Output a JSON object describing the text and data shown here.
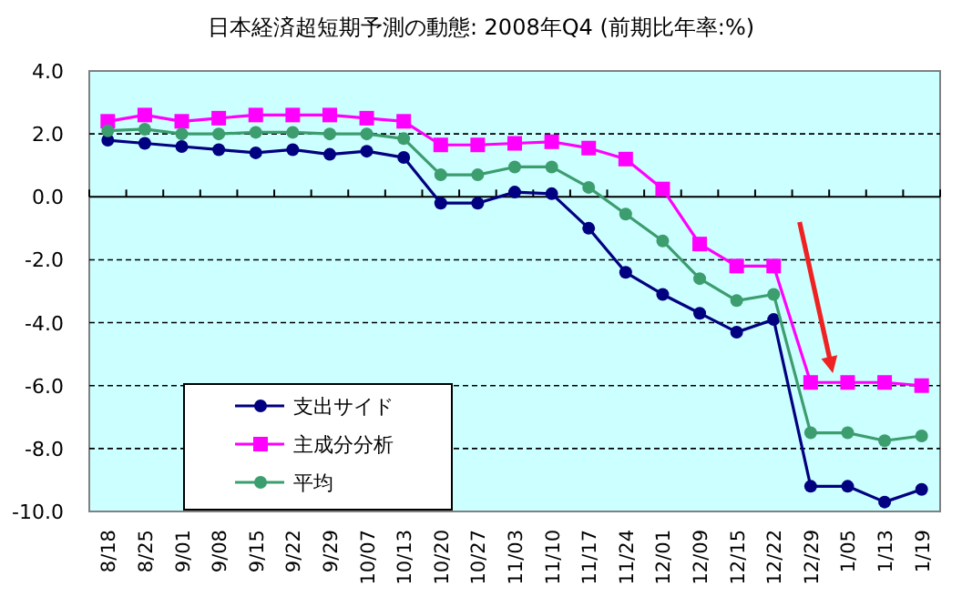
{
  "chart_data": {
    "type": "line",
    "title": "日本経済超短期予測の動態: 2008年Q4 (前期比年率:%)",
    "categories": [
      "8/18",
      "8/25",
      "9/01",
      "9/08",
      "9/15",
      "9/22",
      "9/29",
      "10/07",
      "10/13",
      "10/20",
      "10/27",
      "11/03",
      "11/10",
      "11/17",
      "11/24",
      "12/01",
      "12/09",
      "12/15",
      "12/22",
      "12/29",
      "1/05",
      "1/13",
      "1/19"
    ],
    "series": [
      {
        "name": "支出サイド",
        "color": "#000080",
        "marker": "circle",
        "values": [
          1.8,
          1.7,
          1.6,
          1.5,
          1.4,
          1.5,
          1.35,
          1.45,
          1.25,
          -0.2,
          -0.2,
          0.15,
          0.1,
          -1.0,
          -2.4,
          -3.1,
          -3.7,
          -4.3,
          -3.9,
          -9.2,
          -9.2,
          -9.7,
          -9.3
        ]
      },
      {
        "name": "主成分分析",
        "color": "#ff00ff",
        "marker": "square",
        "values": [
          2.4,
          2.6,
          2.4,
          2.5,
          2.6,
          2.6,
          2.6,
          2.5,
          2.4,
          1.65,
          1.65,
          1.7,
          1.75,
          1.55,
          1.2,
          0.25,
          -1.5,
          -2.2,
          -2.2,
          -5.9,
          -5.9,
          -5.9,
          -6.0
        ]
      },
      {
        "name": "平均",
        "color": "#3c9d6e",
        "marker": "circle",
        "values": [
          2.1,
          2.15,
          2.0,
          2.0,
          2.05,
          2.05,
          2.0,
          2.0,
          1.85,
          0.7,
          0.7,
          0.95,
          0.95,
          0.3,
          -0.55,
          -1.4,
          -2.6,
          -3.3,
          -3.1,
          -7.5,
          -7.5,
          -7.75,
          -7.6
        ]
      }
    ],
    "ylim": [
      -10,
      4
    ],
    "yticks": [
      {
        "value": -10,
        "label": "-10.0"
      },
      {
        "value": -8,
        "label": "-8.0"
      },
      {
        "value": -6,
        "label": "-6.0"
      },
      {
        "value": -4,
        "label": "-4.0"
      },
      {
        "value": -2,
        "label": "-2.0"
      },
      {
        "value": 0,
        "label": "0.0"
      },
      {
        "value": 2,
        "label": "2.0"
      },
      {
        "value": 4,
        "label": "4.0"
      }
    ],
    "grid": "y",
    "legend": "bottom left",
    "line_style": "solid"
  }
}
